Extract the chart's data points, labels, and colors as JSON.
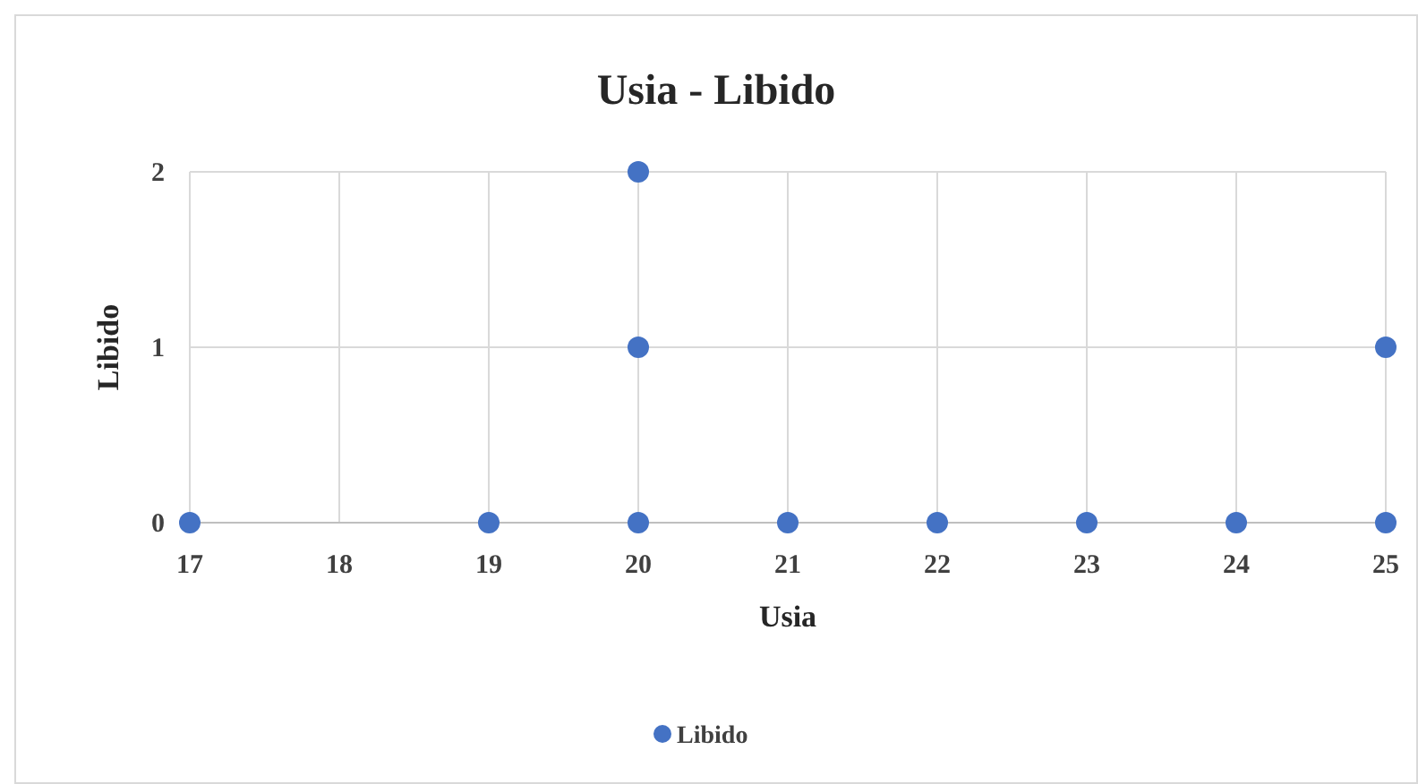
{
  "chart_data": {
    "type": "scatter",
    "title": "Usia - Libido",
    "xlabel": "Usia",
    "ylabel": "Libido",
    "xlim": [
      17,
      25
    ],
    "xticks": [
      17,
      18,
      19,
      20,
      21,
      22,
      23,
      24,
      25
    ],
    "ylim": [
      0,
      2
    ],
    "yticks": [
      0,
      1,
      2
    ],
    "grid": true,
    "legend": "bottom",
    "marker": "circle",
    "series": [
      {
        "name": "Libido",
        "color": "#4472c4",
        "x": [
          17,
          19,
          20,
          20,
          20,
          21,
          22,
          23,
          24,
          25,
          25
        ],
        "values": [
          0,
          0,
          0,
          1,
          2,
          0,
          0,
          0,
          0,
          0,
          1
        ]
      }
    ]
  }
}
